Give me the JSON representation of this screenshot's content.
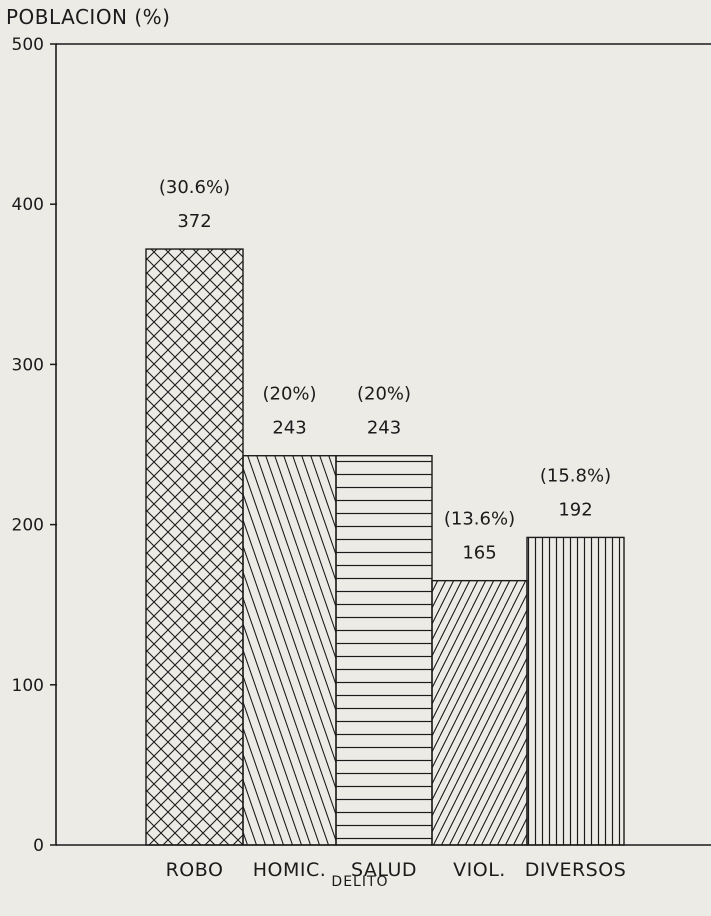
{
  "chart_data": {
    "type": "bar",
    "ylabel": "POBLACION (%)",
    "xlabel": "DELITO",
    "ylim": [
      0,
      500
    ],
    "yticks": [
      0,
      100,
      200,
      300,
      400,
      500
    ],
    "categories": [
      "ROBO",
      "HOMIC.",
      "SALUD",
      "VIOL.",
      "DIVERSOS"
    ],
    "values": [
      372,
      243,
      243,
      165,
      192
    ],
    "value_labels": [
      "372",
      "243",
      "243",
      "165",
      "192"
    ],
    "percent_labels": [
      "(30.6%)",
      "(20%)",
      "(20%)",
      "(13.6%)",
      "(15.8%)"
    ],
    "patterns": [
      "crosshatch",
      "backslash",
      "horizontal",
      "slash",
      "vertical"
    ],
    "grid": false,
    "colors": {
      "ink": "#1b1b1b",
      "paper": "#ecebe6"
    }
  }
}
